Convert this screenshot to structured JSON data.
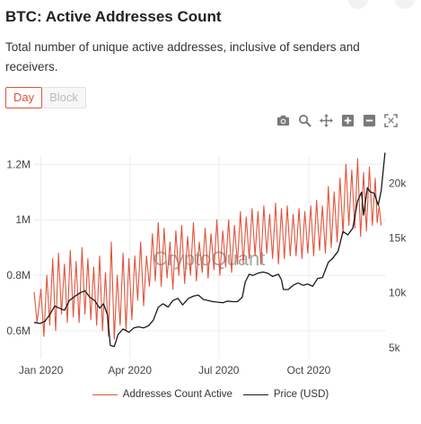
{
  "header": {
    "title": "BTC: Active Addresses Count",
    "description": "Total number of unique active addresses, inclusive of senders and receivers."
  },
  "tabs": [
    {
      "label": "Day",
      "active": true
    },
    {
      "label": "Block",
      "active": false
    }
  ],
  "toolbar": {
    "icons": [
      "camera-icon",
      "zoom-icon",
      "pan-icon",
      "zoom-in-icon",
      "zoom-out-icon",
      "autoscale-icon"
    ]
  },
  "colors": {
    "addresses": "#e0553d",
    "price": "#1a1a1a",
    "accent": "#d9553d",
    "grid": "#ececec",
    "watermark": "#8a8a8a"
  },
  "watermark": "CryptoQuant",
  "chart_data": {
    "type": "line",
    "title": "BTC: Active Addresses Count",
    "x_range": [
      "2019-12-25",
      "2020-12-19"
    ],
    "x_ticks": [
      {
        "date": "2020-01-01",
        "label": "Jan 2020"
      },
      {
        "date": "2020-04-01",
        "label": "Apr 2020"
      },
      {
        "date": "2020-07-01",
        "label": "Jul 2020"
      },
      {
        "date": "2020-10-01",
        "label": "Oct 2020"
      }
    ],
    "y_left": {
      "range": [
        0.5,
        1.23
      ],
      "ticks": [
        0.6,
        0.8,
        1.0,
        1.2
      ],
      "tick_labels": [
        "0.6M",
        "0.8M",
        "1M",
        "1.2M"
      ],
      "unit": "M"
    },
    "y_right": {
      "range": [
        4000,
        22500
      ],
      "ticks": [
        5000,
        10000,
        15000,
        20000
      ],
      "tick_labels": [
        "5k",
        "10k",
        "15k",
        "20k"
      ]
    },
    "grid": true,
    "legend_position": "bottom",
    "series": [
      {
        "name": "Addresses Count Active",
        "axis": "left",
        "color": "#e0553d",
        "points": [
          [
            "2019-12-25",
            0.74
          ],
          [
            "2019-12-28",
            0.63
          ],
          [
            "2020-01-01",
            0.75
          ],
          [
            "2020-01-04",
            0.58
          ],
          [
            "2020-01-07",
            0.8
          ],
          [
            "2020-01-10",
            0.62
          ],
          [
            "2020-01-13",
            0.86
          ],
          [
            "2020-01-16",
            0.6
          ],
          [
            "2020-01-19",
            0.88
          ],
          [
            "2020-01-22",
            0.66
          ],
          [
            "2020-01-25",
            0.84
          ],
          [
            "2020-01-28",
            0.63
          ],
          [
            "2020-01-31",
            0.89
          ],
          [
            "2020-02-03",
            0.65
          ],
          [
            "2020-02-06",
            0.85
          ],
          [
            "2020-02-09",
            0.63
          ],
          [
            "2020-02-12",
            0.9
          ],
          [
            "2020-02-15",
            0.66
          ],
          [
            "2020-02-18",
            0.86
          ],
          [
            "2020-02-21",
            0.64
          ],
          [
            "2020-02-24",
            0.83
          ],
          [
            "2020-02-27",
            0.62
          ],
          [
            "2020-03-01",
            0.87
          ],
          [
            "2020-03-04",
            0.6
          ],
          [
            "2020-03-07",
            0.81
          ],
          [
            "2020-03-10",
            0.58
          ],
          [
            "2020-03-13",
            0.92
          ],
          [
            "2020-03-16",
            0.57
          ],
          [
            "2020-03-19",
            0.8
          ],
          [
            "2020-03-22",
            0.62
          ],
          [
            "2020-03-25",
            0.88
          ],
          [
            "2020-03-28",
            0.6
          ],
          [
            "2020-03-31",
            0.86
          ],
          [
            "2020-04-03",
            0.64
          ],
          [
            "2020-04-06",
            0.87
          ],
          [
            "2020-04-09",
            0.71
          ],
          [
            "2020-04-12",
            0.92
          ],
          [
            "2020-04-15",
            0.69
          ],
          [
            "2020-04-18",
            0.87
          ],
          [
            "2020-04-21",
            0.76
          ],
          [
            "2020-04-24",
            0.95
          ],
          [
            "2020-04-27",
            0.78
          ],
          [
            "2020-04-30",
            0.99
          ],
          [
            "2020-05-03",
            0.76
          ],
          [
            "2020-05-06",
            0.97
          ],
          [
            "2020-05-09",
            0.79
          ],
          [
            "2020-05-12",
            0.92
          ],
          [
            "2020-05-15",
            0.75
          ],
          [
            "2020-05-18",
            0.96
          ],
          [
            "2020-05-21",
            0.8
          ],
          [
            "2020-05-24",
            0.98
          ],
          [
            "2020-05-27",
            0.77
          ],
          [
            "2020-05-30",
            0.94
          ],
          [
            "2020-06-02",
            0.8
          ],
          [
            "2020-06-05",
            0.99
          ],
          [
            "2020-06-08",
            0.78
          ],
          [
            "2020-06-11",
            0.92
          ],
          [
            "2020-06-14",
            0.81
          ],
          [
            "2020-06-17",
            0.97
          ],
          [
            "2020-06-20",
            0.79
          ],
          [
            "2020-06-23",
            0.95
          ],
          [
            "2020-06-26",
            0.82
          ],
          [
            "2020-06-29",
            1.0
          ],
          [
            "2020-07-02",
            0.8
          ],
          [
            "2020-07-05",
            0.96
          ],
          [
            "2020-07-08",
            0.83
          ],
          [
            "2020-07-11",
            1.0
          ],
          [
            "2020-07-14",
            0.81
          ],
          [
            "2020-07-17",
            0.98
          ],
          [
            "2020-07-20",
            0.84
          ],
          [
            "2020-07-23",
            1.03
          ],
          [
            "2020-07-26",
            0.84
          ],
          [
            "2020-07-29",
            1.01
          ],
          [
            "2020-08-01",
            0.86
          ],
          [
            "2020-08-04",
            1.04
          ],
          [
            "2020-08-07",
            0.87
          ],
          [
            "2020-08-10",
            1.03
          ],
          [
            "2020-08-13",
            0.84
          ],
          [
            "2020-08-16",
            1.05
          ],
          [
            "2020-08-19",
            0.88
          ],
          [
            "2020-08-22",
            1.02
          ],
          [
            "2020-08-25",
            0.86
          ],
          [
            "2020-08-28",
            1.06
          ],
          [
            "2020-08-31",
            0.84
          ],
          [
            "2020-09-03",
            1.04
          ],
          [
            "2020-09-06",
            0.86
          ],
          [
            "2020-09-09",
            1.05
          ],
          [
            "2020-09-12",
            0.87
          ],
          [
            "2020-09-15",
            1.02
          ],
          [
            "2020-09-18",
            0.87
          ],
          [
            "2020-09-21",
            1.04
          ],
          [
            "2020-09-24",
            0.86
          ],
          [
            "2020-09-27",
            1.03
          ],
          [
            "2020-09-30",
            0.88
          ],
          [
            "2020-10-03",
            1.05
          ],
          [
            "2020-10-06",
            0.87
          ],
          [
            "2020-10-09",
            1.07
          ],
          [
            "2020-10-12",
            0.89
          ],
          [
            "2020-10-15",
            1.05
          ],
          [
            "2020-10-18",
            0.88
          ],
          [
            "2020-10-21",
            1.12
          ],
          [
            "2020-10-24",
            0.9
          ],
          [
            "2020-10-27",
            1.1
          ],
          [
            "2020-10-30",
            0.92
          ],
          [
            "2020-11-02",
            1.15
          ],
          [
            "2020-11-05",
            0.95
          ],
          [
            "2020-11-08",
            1.2
          ],
          [
            "2020-11-11",
            0.98
          ],
          [
            "2020-11-14",
            1.18
          ],
          [
            "2020-11-17",
            0.97
          ],
          [
            "2020-11-20",
            1.22
          ],
          [
            "2020-11-23",
            0.94
          ],
          [
            "2020-11-26",
            1.17
          ],
          [
            "2020-11-29",
            0.96
          ],
          [
            "2020-12-02",
            1.19
          ],
          [
            "2020-12-05",
            0.98
          ],
          [
            "2020-12-08",
            1.15
          ],
          [
            "2020-12-10",
            0.99
          ],
          [
            "2020-12-12",
            1.05
          ],
          [
            "2020-12-14",
            0.98
          ]
        ]
      },
      {
        "name": "Price (USD)",
        "axis": "right",
        "color": "#1a1a1a",
        "points": [
          [
            "2019-12-25",
            7300
          ],
          [
            "2019-12-31",
            7200
          ],
          [
            "2020-01-05",
            7400
          ],
          [
            "2020-01-10",
            8000
          ],
          [
            "2020-01-15",
            8800
          ],
          [
            "2020-01-20",
            8600
          ],
          [
            "2020-01-25",
            8400
          ],
          [
            "2020-01-30",
            9300
          ],
          [
            "2020-02-05",
            9700
          ],
          [
            "2020-02-10",
            10000
          ],
          [
            "2020-02-15",
            10200
          ],
          [
            "2020-02-20",
            9600
          ],
          [
            "2020-02-25",
            9300
          ],
          [
            "2020-03-01",
            8600
          ],
          [
            "2020-03-05",
            9000
          ],
          [
            "2020-03-09",
            8000
          ],
          [
            "2020-03-12",
            5200
          ],
          [
            "2020-03-16",
            5100
          ],
          [
            "2020-03-20",
            6200
          ],
          [
            "2020-03-25",
            6700
          ],
          [
            "2020-03-31",
            6400
          ],
          [
            "2020-04-05",
            6800
          ],
          [
            "2020-04-10",
            6900
          ],
          [
            "2020-04-15",
            6800
          ],
          [
            "2020-04-20",
            7000
          ],
          [
            "2020-04-25",
            7500
          ],
          [
            "2020-04-30",
            8700
          ],
          [
            "2020-05-05",
            9000
          ],
          [
            "2020-05-10",
            8700
          ],
          [
            "2020-05-15",
            9300
          ],
          [
            "2020-05-20",
            9500
          ],
          [
            "2020-05-25",
            8900
          ],
          [
            "2020-05-31",
            9500
          ],
          [
            "2020-06-05",
            9700
          ],
          [
            "2020-06-10",
            9800
          ],
          [
            "2020-06-15",
            9400
          ],
          [
            "2020-06-20",
            9300
          ],
          [
            "2020-06-25",
            9200
          ],
          [
            "2020-06-30",
            9150
          ],
          [
            "2020-07-05",
            9100
          ],
          [
            "2020-07-10",
            9250
          ],
          [
            "2020-07-15",
            9200
          ],
          [
            "2020-07-20",
            9200
          ],
          [
            "2020-07-25",
            9600
          ],
          [
            "2020-07-28",
            11000
          ],
          [
            "2020-08-01",
            11700
          ],
          [
            "2020-08-05",
            11600
          ],
          [
            "2020-08-10",
            11800
          ],
          [
            "2020-08-15",
            11900
          ],
          [
            "2020-08-20",
            11800
          ],
          [
            "2020-08-25",
            11500
          ],
          [
            "2020-08-31",
            11700
          ],
          [
            "2020-09-03",
            11200
          ],
          [
            "2020-09-05",
            10300
          ],
          [
            "2020-09-10",
            10300
          ],
          [
            "2020-09-15",
            10700
          ],
          [
            "2020-09-20",
            10900
          ],
          [
            "2020-09-25",
            10700
          ],
          [
            "2020-09-30",
            10800
          ],
          [
            "2020-10-05",
            10600
          ],
          [
            "2020-10-10",
            11300
          ],
          [
            "2020-10-15",
            11400
          ],
          [
            "2020-10-21",
            12800
          ],
          [
            "2020-10-25",
            13100
          ],
          [
            "2020-10-31",
            13800
          ],
          [
            "2020-11-05",
            15600
          ],
          [
            "2020-11-10",
            15300
          ],
          [
            "2020-11-15",
            15900
          ],
          [
            "2020-11-20",
            18400
          ],
          [
            "2020-11-24",
            19200
          ],
          [
            "2020-11-26",
            17100
          ],
          [
            "2020-11-30",
            19600
          ],
          [
            "2020-12-03",
            19200
          ],
          [
            "2020-12-07",
            19100
          ],
          [
            "2020-12-11",
            18000
          ],
          [
            "2020-12-14",
            19300
          ],
          [
            "2020-12-16",
            21000
          ],
          [
            "2020-12-18",
            22800
          ]
        ]
      }
    ]
  }
}
